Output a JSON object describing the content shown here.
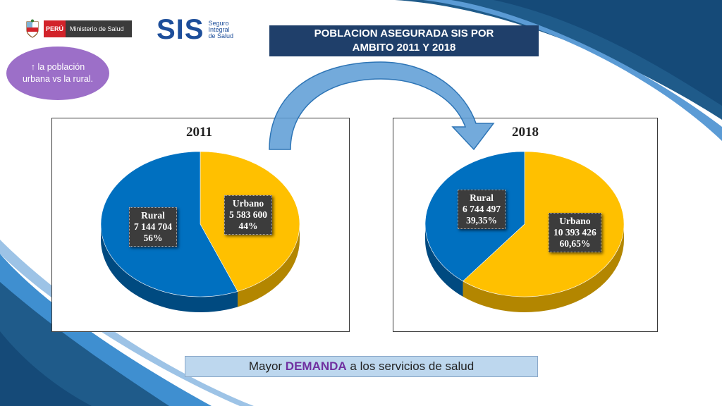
{
  "header": {
    "minsa_country": "PERÚ",
    "minsa_name": "Ministerio de Salud",
    "sis_logo": "SIS",
    "sis_line1": "Seguro",
    "sis_line2": "Integral",
    "sis_line3": "de Salud"
  },
  "title": {
    "line1": "POBLACION ASEGURADA SIS POR",
    "line2": "AMBITO 2011 Y 2018"
  },
  "bubble_text": "↑ la población urbana vs la rural.",
  "footer": {
    "prefix": "Mayor ",
    "highlight": "DEMANDA",
    "suffix": " a los servicios de salud"
  },
  "colors": {
    "urbano": "#ffc000",
    "rural": "#0070c0",
    "title_bg": "#1f3f6a",
    "bubble": "#9c6fc8",
    "highlight": "#7030a0"
  },
  "chart_data": [
    {
      "type": "pie",
      "title": "2011",
      "series": [
        {
          "name": "Urbano",
          "value": 5583600,
          "value_label": "5 583 600",
          "percent_label": "44%"
        },
        {
          "name": "Rural",
          "value": 7144704,
          "value_label": "7 144 704",
          "percent_label": "56%"
        }
      ]
    },
    {
      "type": "pie",
      "title": "2018",
      "series": [
        {
          "name": "Urbano",
          "value": 10393426,
          "value_label": "10 393 426",
          "percent_label": "60,65%"
        },
        {
          "name": "Rural",
          "value": 6744497,
          "value_label": "6 744 497",
          "percent_label": "39,35%"
        }
      ]
    }
  ]
}
